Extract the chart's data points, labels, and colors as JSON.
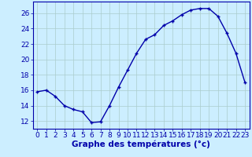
{
  "hours": [
    0,
    1,
    2,
    3,
    4,
    5,
    6,
    7,
    8,
    9,
    10,
    11,
    12,
    13,
    14,
    15,
    16,
    17,
    18,
    19,
    20,
    21,
    22,
    23
  ],
  "temps": [
    15.8,
    16.0,
    15.2,
    14.0,
    13.5,
    13.2,
    11.8,
    11.9,
    14.0,
    16.4,
    18.6,
    20.8,
    22.6,
    23.2,
    24.4,
    25.0,
    25.8,
    26.4,
    26.6,
    26.6,
    25.6,
    23.4,
    20.8,
    17.0
  ],
  "line_color": "#0000aa",
  "marker_color": "#0000aa",
  "bg_color": "#cceeff",
  "grid_color": "#aacccc",
  "axis_color": "#0000aa",
  "xlabel": "Graphe des températures (°c)",
  "ylim": [
    11.0,
    27.5
  ],
  "yticks": [
    12,
    14,
    16,
    18,
    20,
    22,
    24,
    26
  ],
  "xlim": [
    -0.5,
    23.5
  ],
  "xticks": [
    0,
    1,
    2,
    3,
    4,
    5,
    6,
    7,
    8,
    9,
    10,
    11,
    12,
    13,
    14,
    15,
    16,
    17,
    18,
    19,
    20,
    21,
    22,
    23
  ],
  "xlabel_fontsize": 7.5,
  "tick_fontsize": 6.5,
  "marker_size": 3.5,
  "line_width": 1.0
}
